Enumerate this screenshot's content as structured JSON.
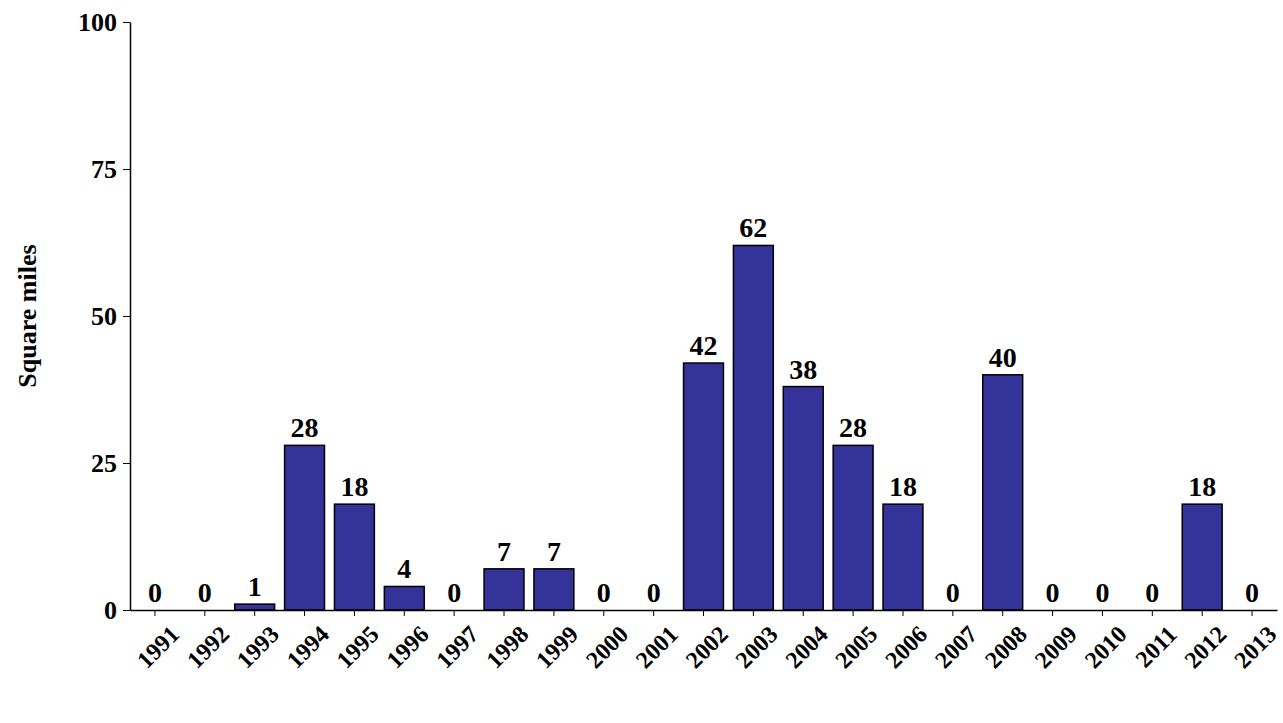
{
  "chart_data": {
    "type": "bar",
    "y_label": "Square miles",
    "categories": [
      "1991",
      "1992",
      "1993",
      "1994",
      "1995",
      "1996",
      "1997",
      "1998",
      "1999",
      "2000",
      "2001",
      "2002",
      "2003",
      "2004",
      "2005",
      "2006",
      "2007",
      "2008",
      "2009",
      "2010",
      "2011",
      "2012",
      "2013"
    ],
    "values": [
      0,
      0,
      1,
      28,
      18,
      4,
      0,
      7,
      7,
      0,
      0,
      42,
      62,
      38,
      28,
      18,
      0,
      40,
      0,
      0,
      0,
      18,
      0
    ],
    "color": "#333399",
    "ylim": [
      0,
      100
    ],
    "yticks": [
      0,
      25,
      50,
      75,
      100
    ],
    "grid": false,
    "data_labels": true
  }
}
